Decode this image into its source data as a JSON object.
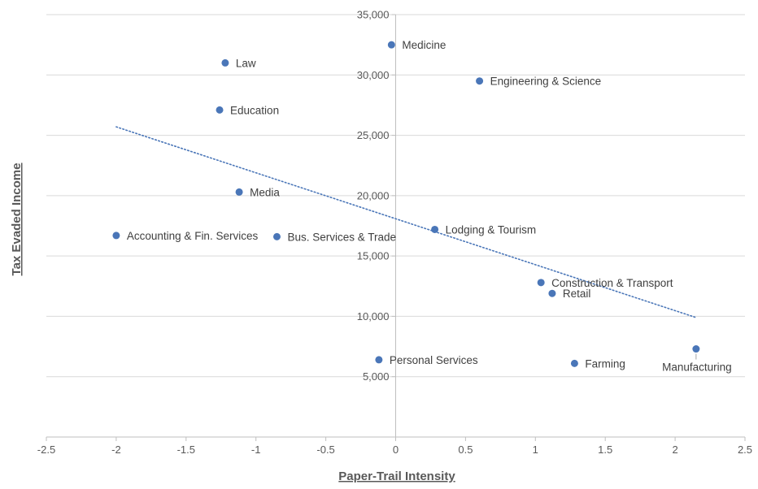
{
  "chart_data": {
    "type": "scatter",
    "xlabel": "Paper-Trail Intensity",
    "ylabel": "Tax Evaded Income",
    "xlim": [
      -2.5,
      2.5
    ],
    "ylim": [
      0,
      35000
    ],
    "x_ticks": [
      -2.5,
      -2,
      -1.5,
      -1,
      -0.5,
      0,
      0.5,
      1,
      1.5,
      2,
      2.5
    ],
    "y_ticks": [
      5000,
      10000,
      15000,
      20000,
      25000,
      30000,
      35000
    ],
    "y_tick_labels": [
      "5,000",
      "10,000",
      "15,000",
      "20,000",
      "25,000",
      "30,000",
      "35,000"
    ],
    "grid": "horizontal",
    "marker_color": "#4a76b8",
    "trendline": {
      "type": "linear",
      "style": "dotted",
      "color": "#4a76b8",
      "x": [
        -2,
        2.15
      ],
      "y": [
        25700,
        9900
      ]
    },
    "points": [
      {
        "label": "Medicine",
        "x": -0.03,
        "y": 32500,
        "label_pos": "right"
      },
      {
        "label": "Law",
        "x": -1.22,
        "y": 31000,
        "label_pos": "right"
      },
      {
        "label": "Engineering & Science",
        "x": 0.6,
        "y": 29500,
        "label_pos": "right"
      },
      {
        "label": "Education",
        "x": -1.26,
        "y": 27100,
        "label_pos": "right"
      },
      {
        "label": "Media",
        "x": -1.12,
        "y": 20300,
        "label_pos": "right"
      },
      {
        "label": "Accounting & Fin. Services",
        "x": -2.0,
        "y": 16700,
        "label_pos": "right"
      },
      {
        "label": "Bus. Services & Trade",
        "x": -0.85,
        "y": 16600,
        "label_pos": "right"
      },
      {
        "label": "Lodging & Tourism",
        "x": 0.28,
        "y": 17200,
        "label_pos": "right"
      },
      {
        "label": "Construction & Transport",
        "x": 1.04,
        "y": 12800,
        "label_pos": "right"
      },
      {
        "label": "Retail",
        "x": 1.12,
        "y": 11900,
        "label_pos": "right"
      },
      {
        "label": "Personal Services",
        "x": -0.12,
        "y": 6400,
        "label_pos": "right"
      },
      {
        "label": "Farming",
        "x": 1.28,
        "y": 6100,
        "label_pos": "right"
      },
      {
        "label": "Manufacturing",
        "x": 2.15,
        "y": 7300,
        "label_pos": "below"
      }
    ]
  }
}
